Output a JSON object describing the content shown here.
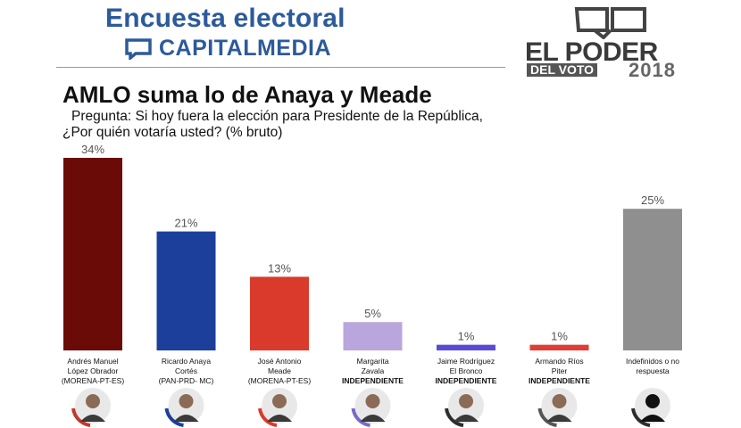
{
  "header": {
    "title": "Encuesta electoral",
    "brand": "CAPITALMEDIA",
    "brand_color": "#2c5a9a"
  },
  "logo": {
    "name": "EL PODER",
    "sub": "DEL VOTO",
    "year": "2018"
  },
  "headline": "AMLO suma lo de Anaya y Meade",
  "question_line1": "Pregunta: Si hoy fuera la elección para Presidente de la República,",
  "question_line2": "¿Por quién votaría usted? (% bruto)",
  "chart_data": {
    "type": "bar",
    "categories": [
      "Andrés Manuel López Obrador (MORENA-PT-ES)",
      "Ricardo Anaya Cortés (PAN-PRD- MC)",
      "José Antonio Meade (MORENA-PT-ES)",
      "Margarita Zavala INDEPENDIENTE",
      "Jaime Rodríguez El Bronco INDEPENDIENTE",
      "Armando Ríos Piter INDEPENDIENTE",
      "Indefinidos o no respuesta"
    ],
    "label_lines": [
      [
        [
          "Andrés Manuel",
          false
        ],
        [
          "López Obrador",
          false
        ],
        [
          "(MORENA-PT-ES)",
          false
        ]
      ],
      [
        [
          "Ricardo Anaya",
          false
        ],
        [
          "Cortés",
          false
        ],
        [
          "(PAN-PRD- MC)",
          false
        ]
      ],
      [
        [
          "José Antonio",
          false
        ],
        [
          "Meade",
          false
        ],
        [
          "(MORENA-PT-ES)",
          false
        ]
      ],
      [
        [
          "Margarita",
          false
        ],
        [
          "Zavala",
          false
        ],
        [
          "INDEPENDIENTE",
          true
        ]
      ],
      [
        [
          "Jaime Rodríguez",
          false
        ],
        [
          "El Bronco",
          false
        ],
        [
          "INDEPENDIENTE",
          true
        ]
      ],
      [
        [
          "Armando Ríos",
          false
        ],
        [
          "Piter",
          false
        ],
        [
          "INDEPENDIENTE",
          true
        ]
      ],
      [
        [
          "Indefinidos o no",
          false
        ],
        [
          "respuesta",
          false
        ]
      ]
    ],
    "values": [
      34,
      21,
      13,
      5,
      1,
      1,
      25
    ],
    "value_labels": [
      "34%",
      "21%",
      "13%",
      "5%",
      "1%",
      "1%",
      "25%"
    ],
    "colors": [
      "#6b0b07",
      "#1b3f9a",
      "#d93a2c",
      "#b9a6dc",
      "#5a4bd6",
      "#e03c36",
      "#8f8f8f"
    ],
    "ring_colors": [
      "#c0392b",
      "#1b3f9a",
      "#d93a2c",
      "#7a68c9",
      "#2d2d2d",
      "#555555",
      "#2d2d2d"
    ],
    "ylim": [
      0,
      34
    ]
  }
}
